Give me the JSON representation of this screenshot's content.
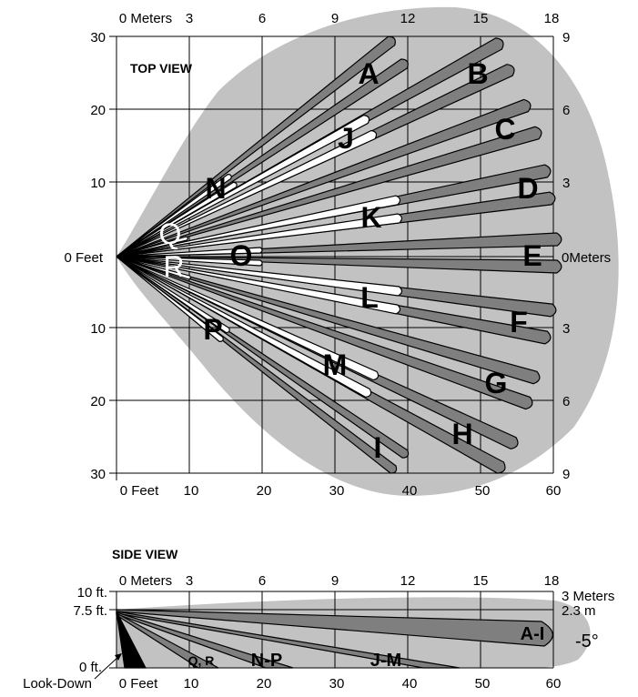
{
  "top_view": {
    "title": "TOP VIEW",
    "meters_top_axis": [
      "0 Meters",
      "3",
      "6",
      "9",
      "12",
      "15",
      "18"
    ],
    "feet_bottom_axis": [
      "0 Feet",
      "10",
      "20",
      "30",
      "40",
      "50",
      "60"
    ],
    "feet_left_axis": [
      "30",
      "20",
      "10",
      "0 Feet",
      "10",
      "20",
      "30"
    ],
    "meters_right_axis": [
      "9",
      "6",
      "3",
      "0Meters",
      "3",
      "6",
      "9"
    ],
    "zone_labels": {
      "A": "A",
      "B": "B",
      "C": "C",
      "D": "D",
      "E": "E",
      "F": "F",
      "G": "G",
      "H": "H",
      "I": "I",
      "J": "J",
      "K": "K",
      "L": "L",
      "M": "M",
      "N": "N",
      "O": "O",
      "P": "P",
      "Q": "Q",
      "R": "R"
    }
  },
  "side_view": {
    "title": "SIDE VIEW",
    "meters_top_axis": [
      "0 Meters",
      "3",
      "6",
      "9",
      "12",
      "15",
      "18"
    ],
    "feet_bottom_axis": [
      "0 Feet",
      "10",
      "20",
      "30",
      "40",
      "50",
      "60"
    ],
    "left_labels": [
      "10 ft.",
      "7.5 ft.",
      "0 ft."
    ],
    "right_labels": [
      "3 Meters",
      "2.3 m"
    ],
    "look_down_label": "Look-Down",
    "angle_label": "-5°",
    "zone_labels": [
      "A-I",
      "J-M",
      "N-P",
      "Q, R"
    ]
  },
  "colors": {
    "coverage": "#c2c2c2",
    "beam_dark": "#7f7f7f",
    "beam_white": "#ffffff",
    "grid": "#000000",
    "text": "#000000"
  }
}
